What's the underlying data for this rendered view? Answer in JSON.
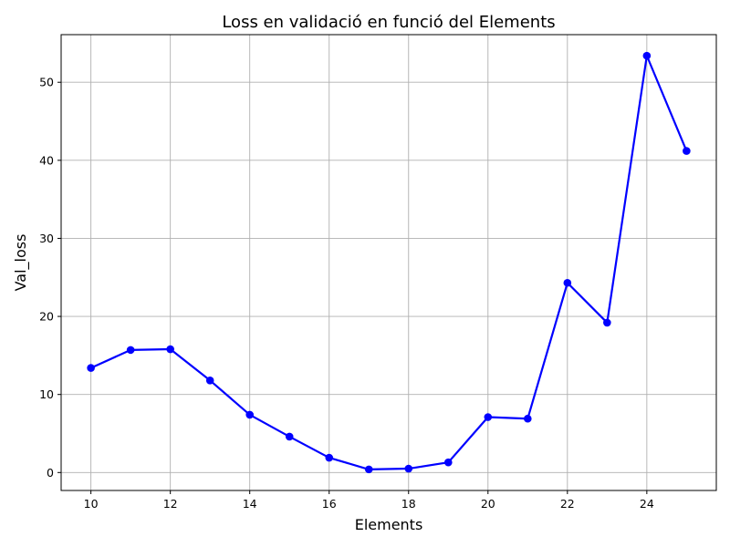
{
  "chart_data": {
    "type": "line",
    "title": "Loss en validació en funció del Elements",
    "xlabel": "Elements",
    "ylabel": "Val_loss",
    "x": [
      10,
      11,
      12,
      13,
      14,
      15,
      16,
      17,
      18,
      19,
      20,
      21,
      22,
      23,
      24,
      25
    ],
    "series": [
      {
        "values": [
          13.4,
          15.7,
          15.8,
          11.8,
          7.4,
          4.6,
          1.9,
          0.4,
          0.5,
          1.3,
          7.1,
          6.9,
          24.3,
          19.2,
          53.4,
          41.2
        ],
        "color": "#0000ff",
        "marker": "circle"
      }
    ],
    "xlim": [
      9.25,
      25.75
    ],
    "ylim": [
      -2.3,
      56.1
    ],
    "xticks": [
      "10",
      "12",
      "14",
      "16",
      "18",
      "20",
      "22",
      "24"
    ],
    "yticks": [
      "0",
      "10",
      "20",
      "30",
      "40",
      "50"
    ],
    "grid": true,
    "legend": "none"
  }
}
